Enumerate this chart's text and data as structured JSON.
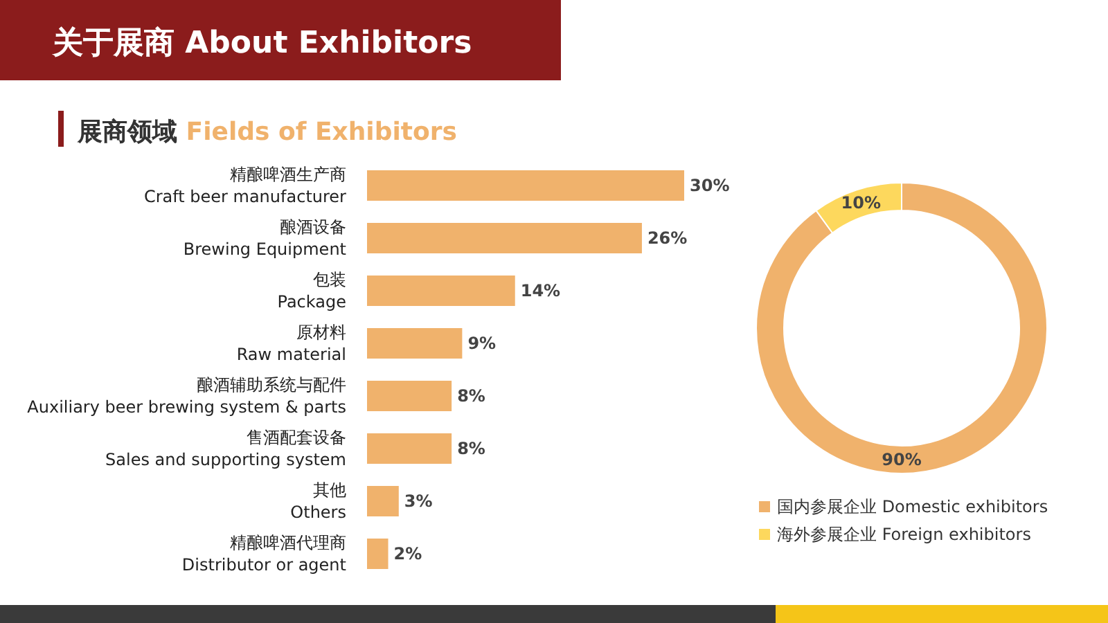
{
  "chart_data": [
    {
      "type": "bar",
      "orientation": "horizontal",
      "title": "关于展商 About Exhibitors",
      "subtitle": "展商领域 Fields of Exhibitors",
      "categories": [
        "精酿啤酒生产商\nCraft beer manufacturer",
        "酿酒设备\nBrewing Equipment",
        "包装\nPackage",
        "原材料\nRaw material",
        "酿酒辅助系统与配件\nAuxiliary  beer brewing system & parts",
        "售酒配套设备\nSales and supporting system",
        "其他\nOthers",
        "精酿啤酒代理商\nDistributor or agent"
      ],
      "values": [
        30,
        26,
        14,
        9,
        8,
        8,
        3,
        2
      ],
      "value_labels": [
        "30%",
        "26%",
        "14%",
        "9%",
        "8%",
        "8%",
        "3%",
        "2%"
      ],
      "color": "#f0b26c"
    },
    {
      "type": "donut",
      "categories": [
        "国内参展企业 Domestic exhibitors",
        "海外参展企业 Foreign exhibitors"
      ],
      "values": [
        90,
        10
      ],
      "colors": [
        "#f0b26c",
        "#fdd85d"
      ],
      "value_labels": [
        "90%",
        "10%"
      ],
      "legend": "bottom"
    }
  ]
}
